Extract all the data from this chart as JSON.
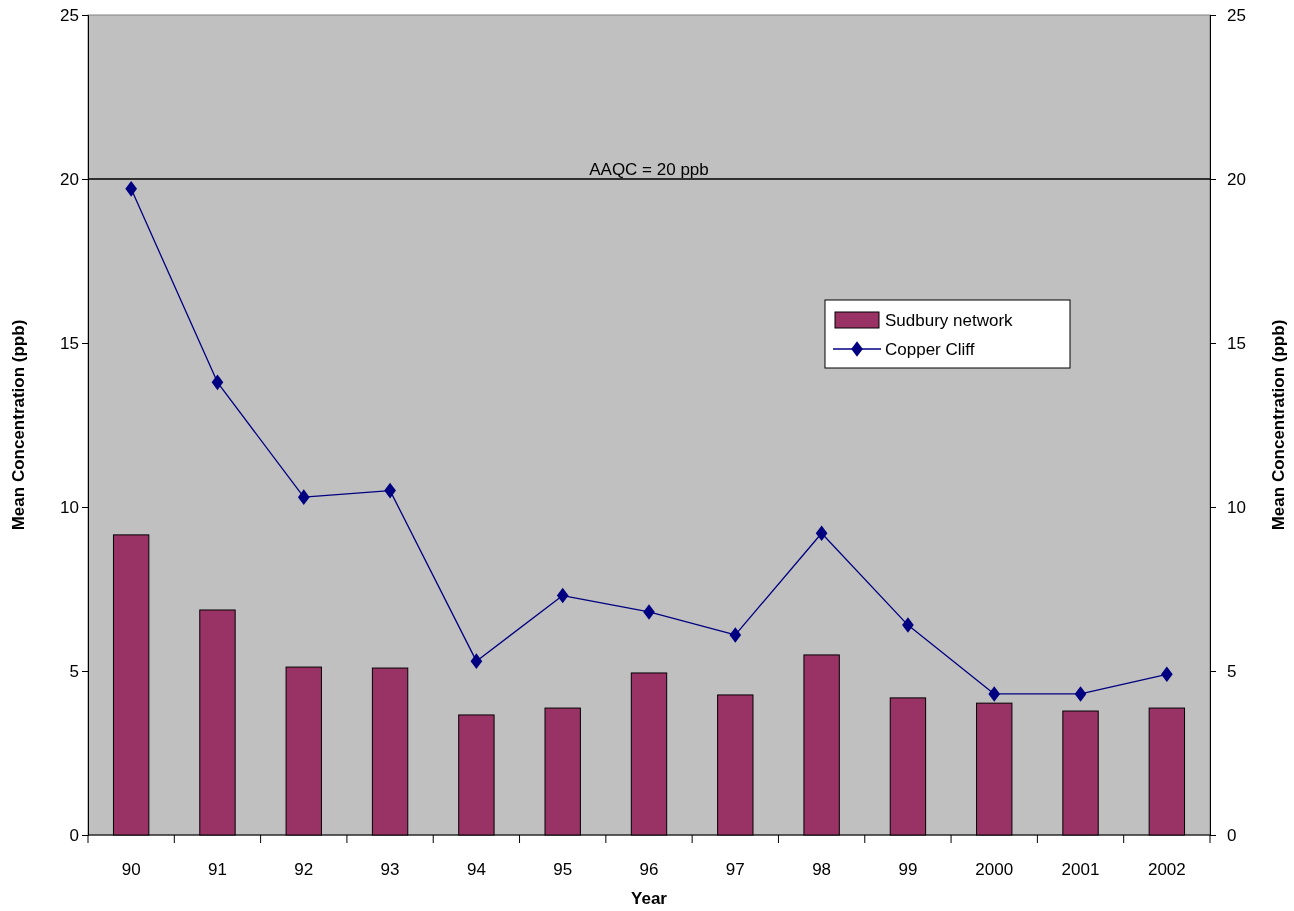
{
  "chart_data": {
    "type": "bar",
    "xlabel": "Year",
    "ylabel": "Mean Concentration (ppb)",
    "y2label": "Mean Concentration (ppb)",
    "categories": [
      "90",
      "91",
      "92",
      "93",
      "94",
      "95",
      "96",
      "97",
      "98",
      "99",
      "2000",
      "2001",
      "2002"
    ],
    "series": [
      {
        "name": "Sudbury network",
        "color": "#993366",
        "values": [
          9.15,
          6.86,
          5.12,
          5.09,
          3.66,
          3.87,
          4.94,
          4.27,
          5.49,
          4.18,
          4.02,
          3.78,
          3.87
        ]
      },
      {
        "name": "Copper Cliff",
        "type": "line",
        "color": "#000080",
        "marker": "diamond",
        "values": [
          19.7,
          13.8,
          10.3,
          10.5,
          5.3,
          7.3,
          6.8,
          6.1,
          9.2,
          6.4,
          4.3,
          4.3,
          4.9
        ]
      }
    ],
    "ylim": [
      0,
      25
    ],
    "yticks": [
      0,
      5,
      10,
      15,
      20,
      25
    ],
    "y2lim": [
      0,
      25
    ],
    "y2ticks": [
      0,
      5,
      10,
      15,
      20,
      25
    ],
    "ref_lines": [
      {
        "axis": "y",
        "value": 20,
        "label": "AAQC = 20 ppb",
        "color": "#000000"
      }
    ],
    "grid": false,
    "legend": "right"
  }
}
